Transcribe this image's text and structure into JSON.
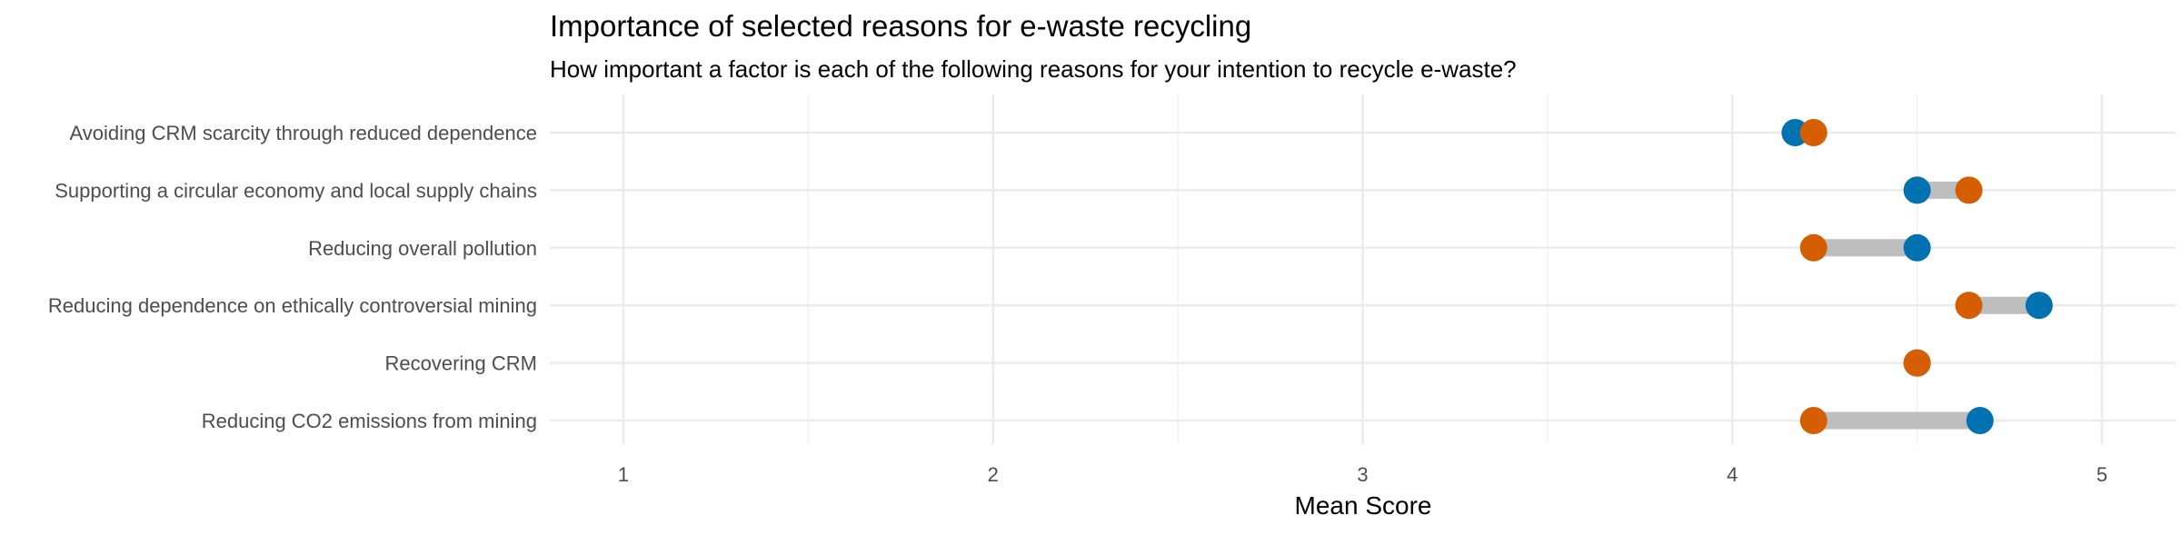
{
  "chart_data": {
    "type": "dumbbell",
    "title": "Importance of selected reasons for e-waste recycling",
    "subtitle": "How important a factor is each of the following reasons for your intention to recycle e-waste?",
    "xlabel": "Mean Score",
    "ylabel": "",
    "xlim": [
      0.8,
      5.2
    ],
    "x_ticks": [
      1,
      2,
      3,
      4,
      5
    ],
    "grid": true,
    "categories": [
      "Avoiding CRM scarcity through reduced dependence",
      "Supporting a circular economy and local supply chains",
      "Reducing overall pollution",
      "Reducing dependence on ethically controversial mining",
      "Recovering CRM",
      "Reducing CO2 emissions from mining"
    ],
    "series": [
      {
        "color": "#0072B2",
        "values": [
          4.17,
          4.5,
          4.5,
          4.83,
          4.5,
          4.67
        ]
      },
      {
        "color": "#D55E00",
        "values": [
          4.22,
          4.64,
          4.22,
          4.64,
          4.5,
          4.22
        ]
      }
    ],
    "segment_color": "#BEBEBE"
  }
}
